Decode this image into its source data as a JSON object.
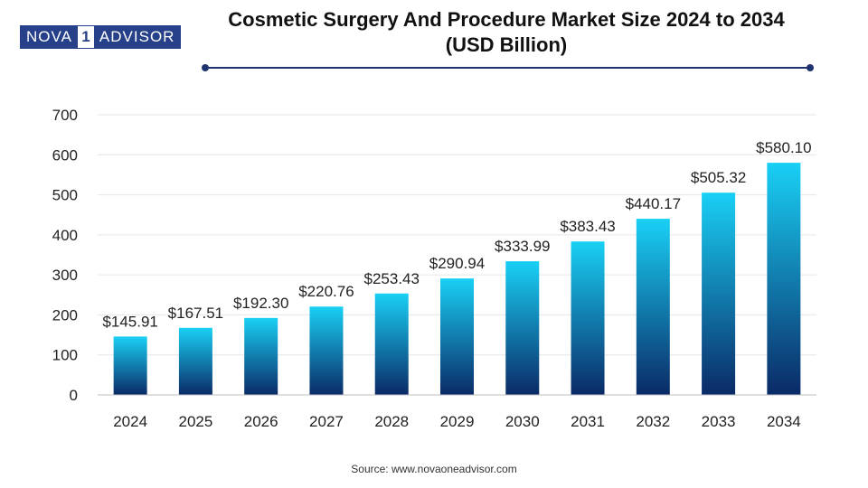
{
  "logo": {
    "left": "NOVA",
    "mark": "1",
    "right": "ADVISOR"
  },
  "title_lines": [
    "Cosmetic Surgery And Procedure Market Size 2024 to 2034",
    "(USD Billion)"
  ],
  "source": "Source: www.novaoneadvisor.com",
  "colors": {
    "bar_top": "#19d0f5",
    "bar_bottom": "#0a2a66",
    "accent": "#1f3470",
    "grid": "#e6e6e6"
  },
  "chart_data": {
    "type": "bar",
    "title": "Cosmetic Surgery And Procedure Market Size 2024 to 2034 (USD Billion)",
    "categories": [
      "2024",
      "2025",
      "2026",
      "2027",
      "2028",
      "2029",
      "2030",
      "2031",
      "2032",
      "2033",
      "2034"
    ],
    "values": [
      145.91,
      167.51,
      192.3,
      220.76,
      253.43,
      290.94,
      333.99,
      383.43,
      440.17,
      505.32,
      580.1
    ],
    "value_labels": [
      "$145.91",
      "$167.51",
      "$192.30",
      "$220.76",
      "$253.43",
      "$290.94",
      "$333.99",
      "$383.43",
      "$440.17",
      "$505.32",
      "$580.10"
    ],
    "xlabel": "",
    "ylabel": "",
    "yticks": [
      0,
      100,
      200,
      300,
      400,
      500,
      600,
      700
    ],
    "ylim": [
      0,
      700
    ],
    "grid": true,
    "legend": "none"
  }
}
